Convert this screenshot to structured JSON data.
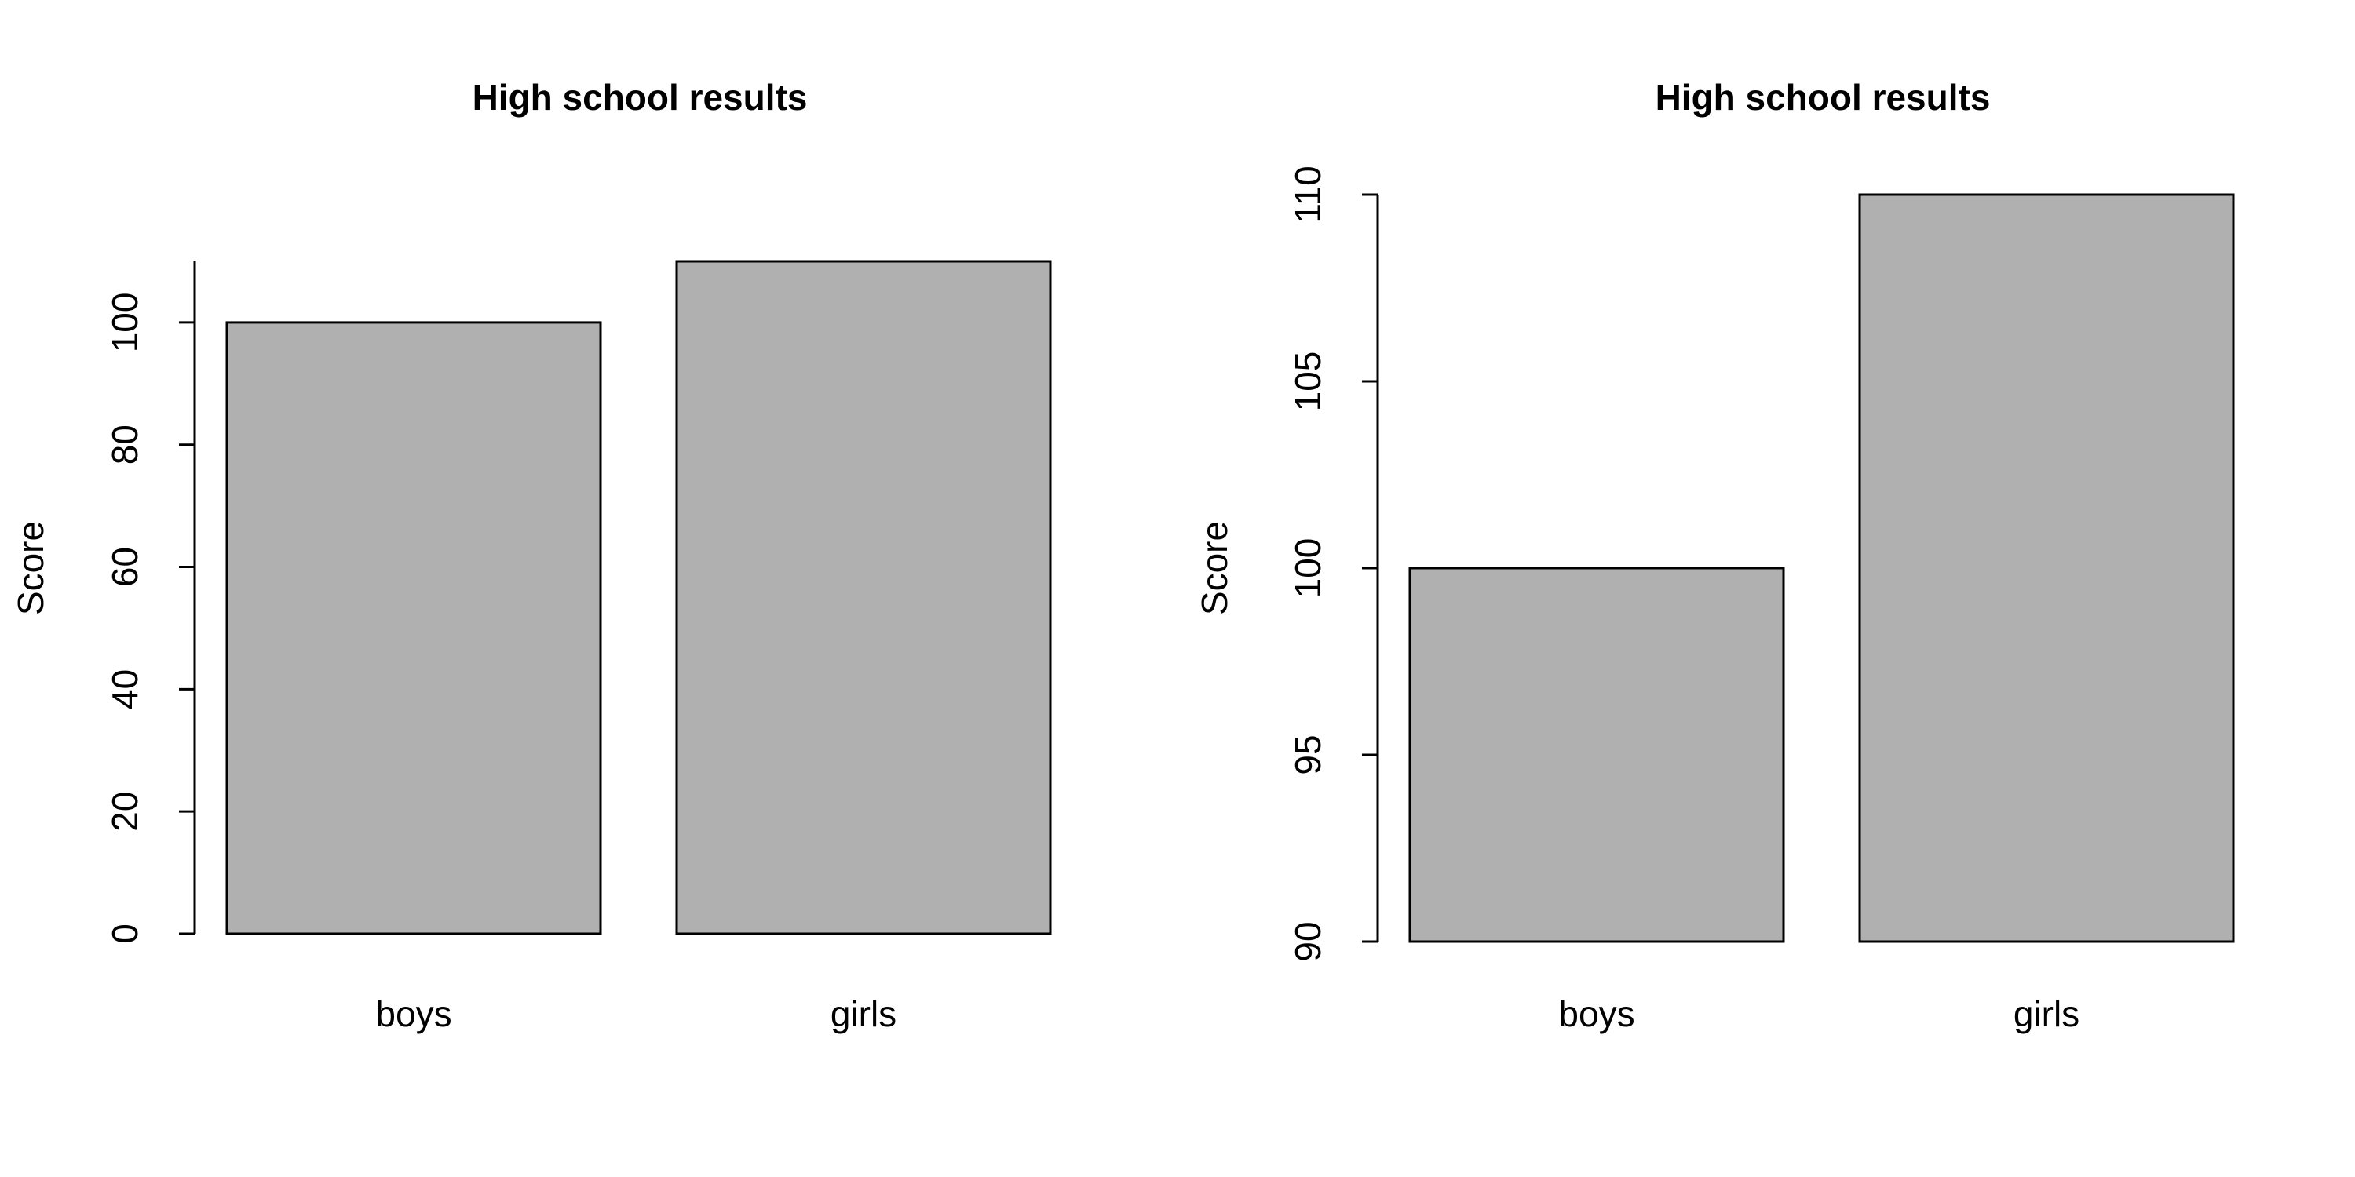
{
  "chart_data": [
    {
      "type": "bar",
      "title": "High school results",
      "ylabel": "Score",
      "categories": [
        "boys",
        "girls"
      ],
      "values": [
        100,
        110
      ],
      "ylim": [
        0,
        110
      ],
      "yticks": [
        "0",
        "20",
        "40",
        "60",
        "80",
        "100"
      ],
      "bar_color": "#b0b0b0"
    },
    {
      "type": "bar",
      "title": "High school results",
      "ylabel": "Score",
      "categories": [
        "boys",
        "girls"
      ],
      "values": [
        100,
        110
      ],
      "ylim": [
        90,
        110
      ],
      "yticks": [
        "90",
        "95",
        "100",
        "105",
        "110"
      ],
      "bar_color": "#b0b0b0"
    }
  ]
}
